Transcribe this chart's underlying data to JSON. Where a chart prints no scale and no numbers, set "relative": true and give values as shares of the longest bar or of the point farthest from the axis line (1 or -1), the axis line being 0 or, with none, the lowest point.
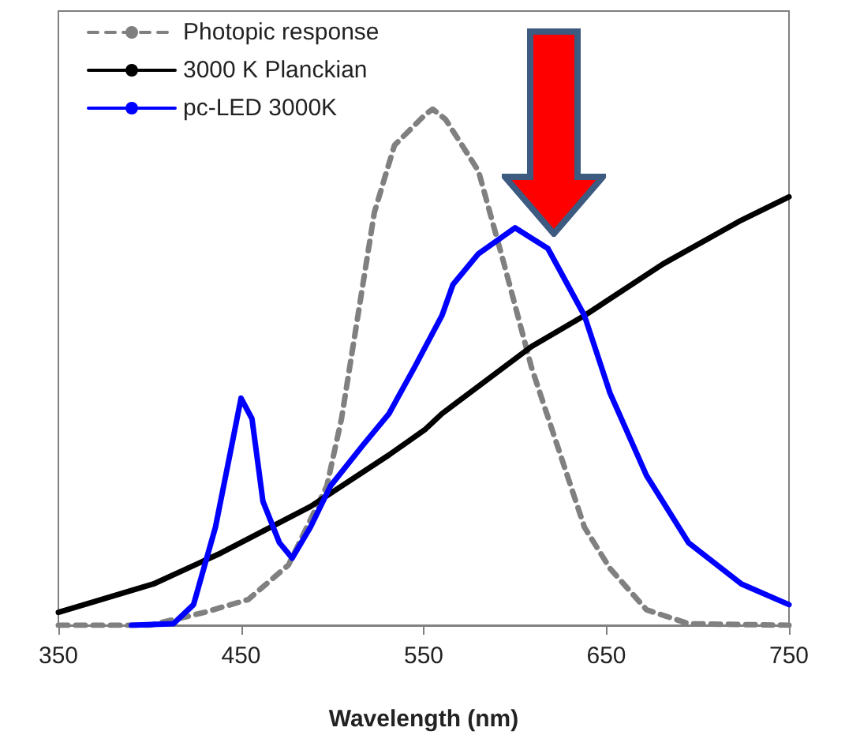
{
  "chart_data": {
    "type": "line",
    "xlabel": "Wavelength (nm)",
    "relative": true,
    "xlim": [
      350,
      750
    ],
    "xticks": [
      350,
      450,
      550,
      650,
      750
    ],
    "legend": "top left",
    "grid": false,
    "marker": "none",
    "series": [
      {
        "name": "Photopic response",
        "color": "#808080",
        "line_style": "dashed",
        "x": [
          350,
          400,
          430,
          454,
          476,
          497,
          505,
          514,
          523,
          534,
          551,
          555,
          562,
          580,
          594,
          609,
          623,
          638,
          652,
          672,
          695,
          750
        ],
        "values": [
          0,
          0,
          0.025,
          0.05,
          0.117,
          0.27,
          0.4,
          0.6,
          0.8,
          0.93,
          0.99,
          1,
          0.98,
          0.88,
          0.7,
          0.5,
          0.35,
          0.19,
          0.11,
          0.03,
          0.003,
          0
        ]
      },
      {
        "name": "3000 K Planckian",
        "color": "#000000",
        "line_style": "solid",
        "x": [
          350,
          402,
          439,
          488,
          531,
          551,
          560,
          609,
          638,
          681,
          724,
          750
        ],
        "values": [
          0.025,
          0.08,
          0.14,
          0.23,
          0.33,
          0.38,
          0.41,
          0.54,
          0.6,
          0.7,
          0.785,
          0.83
        ]
      },
      {
        "name": "pc-LED 3000K",
        "color": "#0000ff",
        "line_style": "solid",
        "x": [
          390,
          413,
          424,
          436,
          445,
          450,
          456,
          462,
          471,
          478,
          488,
          499,
          517,
          531,
          545,
          560,
          566,
          580,
          600,
          618,
          638,
          652,
          672,
          695,
          724,
          750
        ],
        "values": [
          0,
          0.003,
          0.04,
          0.19,
          0.35,
          0.44,
          0.4,
          0.24,
          0.16,
          0.13,
          0.19,
          0.27,
          0.35,
          0.41,
          0.5,
          0.6,
          0.66,
          0.72,
          0.77,
          0.73,
          0.6,
          0.45,
          0.29,
          0.16,
          0.08,
          0.04
        ]
      }
    ]
  }
}
